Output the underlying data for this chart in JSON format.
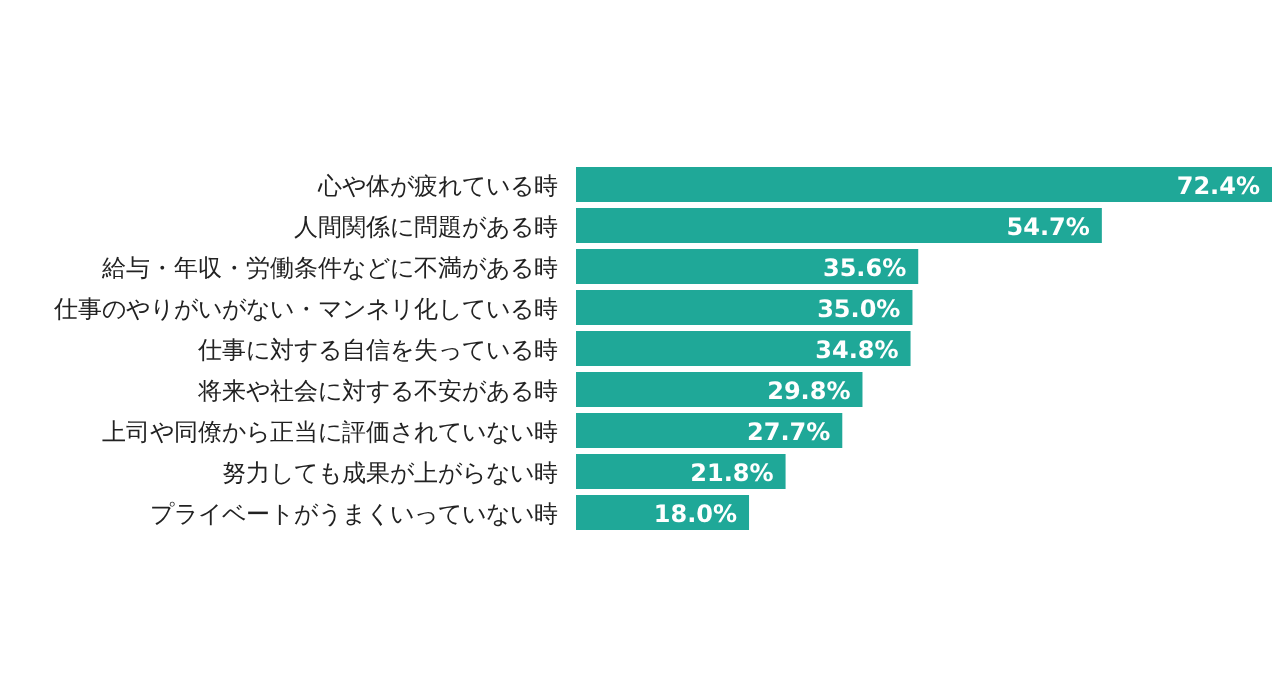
{
  "chart_data": {
    "type": "bar",
    "orientation": "horizontal",
    "categories": [
      "心や体が疲れている時",
      "人間関係に問題がある時",
      "給与・年収・労働条件などに不満がある時",
      "仕事のやりがいがない・マンネリ化している時",
      "仕事に対する自信を失っている時",
      "将来や社会に対する不安がある時",
      "上司や同僚から正当に評価されていない時",
      "努力しても成果が上がらない時",
      "プライベートがうまくいっていない時"
    ],
    "values": [
      72.4,
      54.7,
      35.6,
      35.0,
      34.8,
      29.8,
      27.7,
      21.8,
      18.0
    ],
    "value_labels": [
      "72.4%",
      "54.7%",
      "35.6%",
      "35.0%",
      "34.8%",
      "29.8%",
      "27.7%",
      "21.8%",
      "18.0%"
    ],
    "color": "#1fa898"
  }
}
